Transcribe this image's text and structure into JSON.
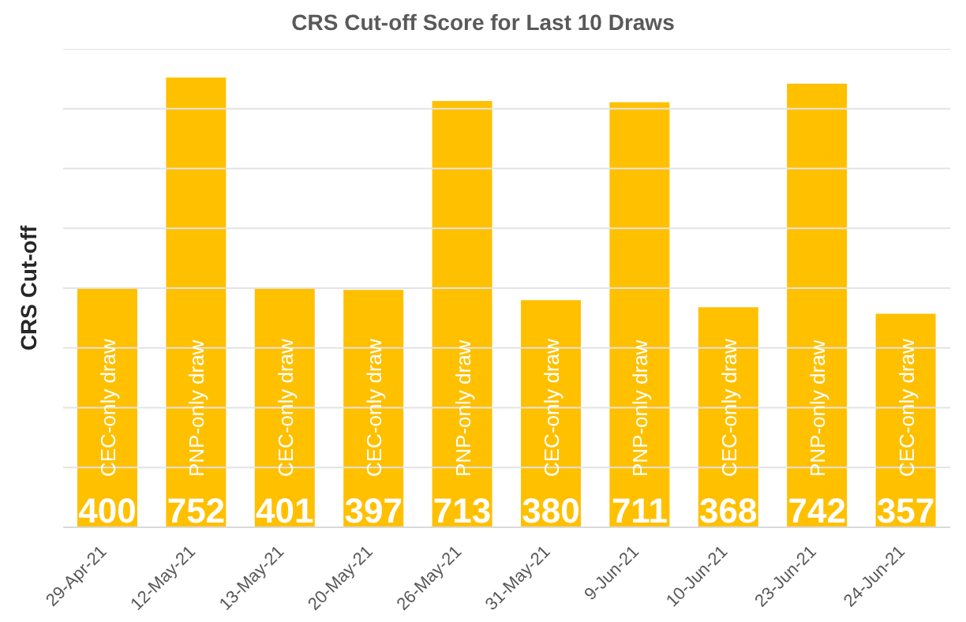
{
  "chart_data": {
    "type": "bar",
    "title": "CRS Cut-off Score for Last 10 Draws",
    "ylabel": "CRS Cut-off",
    "categories": [
      "29-Apr-21",
      "12-May-21",
      "13-May-21",
      "20-May-21",
      "26-May-21",
      "31-May-21",
      "9-Jun-21",
      "10-Jun-21",
      "23-Jun-21",
      "24-Jun-21"
    ],
    "values": [
      400,
      752,
      401,
      397,
      713,
      380,
      711,
      368,
      742,
      357
    ],
    "color": "#ffc000",
    "ylim": [
      0,
      800
    ],
    "yticks": [
      {
        "value": 0,
        "label": null
      },
      {
        "value": 100,
        "label": null
      },
      {
        "value": 200,
        "label": null
      },
      {
        "value": 300,
        "label": null
      },
      {
        "value": 400,
        "label": null
      },
      {
        "value": 500,
        "label": null
      },
      {
        "value": 600,
        "label": null
      },
      {
        "value": 700,
        "label": null
      },
      {
        "value": 800,
        "label": null
      }
    ],
    "tick_labels": "x",
    "grid": "y",
    "data_labels": true,
    "annotations": [
      {
        "text": "CEC-only draw",
        "x": "29-Apr-21"
      },
      {
        "text": "PNP-only draw",
        "x": "12-May-21"
      },
      {
        "text": "CEC-only draw",
        "x": "13-May-21"
      },
      {
        "text": "CEC-only draw",
        "x": "20-May-21"
      },
      {
        "text": "PNP-only draw",
        "x": "26-May-21"
      },
      {
        "text": "CEC-only draw",
        "x": "31-May-21"
      },
      {
        "text": "PNP-only draw",
        "x": "9-Jun-21"
      },
      {
        "text": "CEC-only draw",
        "x": "10-Jun-21"
      },
      {
        "text": "PNP-only draw",
        "x": "23-Jun-21"
      },
      {
        "text": "CEC-only draw",
        "x": "24-Jun-21"
      }
    ]
  }
}
